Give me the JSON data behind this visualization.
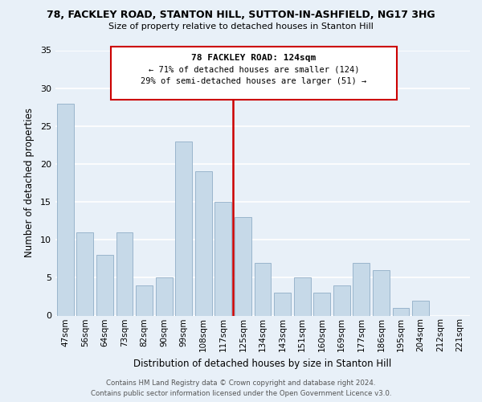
{
  "title": "78, FACKLEY ROAD, STANTON HILL, SUTTON-IN-ASHFIELD, NG17 3HG",
  "subtitle": "Size of property relative to detached houses in Stanton Hill",
  "xlabel": "Distribution of detached houses by size in Stanton Hill",
  "ylabel": "Number of detached properties",
  "bar_labels": [
    "47sqm",
    "56sqm",
    "64sqm",
    "73sqm",
    "82sqm",
    "90sqm",
    "99sqm",
    "108sqm",
    "117sqm",
    "125sqm",
    "134sqm",
    "143sqm",
    "151sqm",
    "160sqm",
    "169sqm",
    "177sqm",
    "186sqm",
    "195sqm",
    "204sqm",
    "212sqm",
    "221sqm"
  ],
  "bar_values": [
    28,
    11,
    8,
    11,
    4,
    5,
    23,
    19,
    15,
    13,
    7,
    3,
    5,
    3,
    4,
    7,
    6,
    1,
    2,
    0,
    0
  ],
  "bar_color": "#c6d9e8",
  "bar_edge_color": "#9ab5cc",
  "background_color": "#e8f0f8",
  "grid_color": "#ffffff",
  "ref_line_index": 9,
  "annotation_title": "78 FACKLEY ROAD: 124sqm",
  "annotation_line1": "← 71% of detached houses are smaller (124)",
  "annotation_line2": "29% of semi-detached houses are larger (51) →",
  "annotation_box_color": "#cc0000",
  "ylim": [
    0,
    35
  ],
  "yticks": [
    0,
    5,
    10,
    15,
    20,
    25,
    30,
    35
  ],
  "footer1": "Contains HM Land Registry data © Crown copyright and database right 2024.",
  "footer2": "Contains public sector information licensed under the Open Government Licence v3.0."
}
